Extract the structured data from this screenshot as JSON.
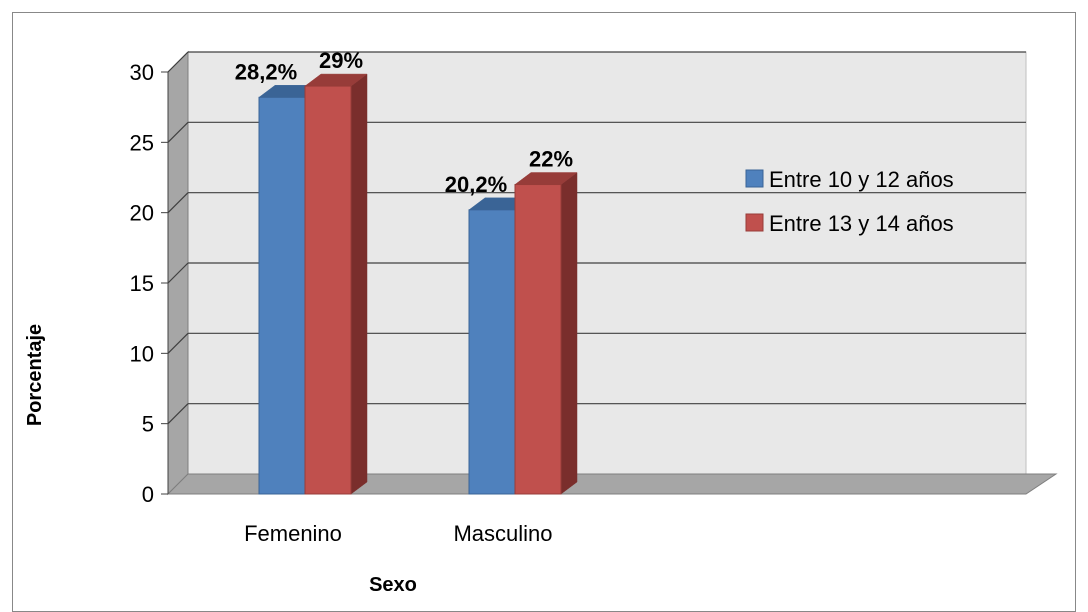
{
  "chart_data": {
    "type": "bar",
    "categories": [
      "Femenino",
      "Masculino"
    ],
    "series": [
      {
        "name": "Entre 10 y 12 años",
        "values": [
          28.2,
          20.2
        ],
        "labels": [
          "28,2%",
          "20,2%"
        ],
        "color": "#4f81bd",
        "shade": "#3a6496",
        "dark": "#2d4f78"
      },
      {
        "name": "Entre 13 y 14 años",
        "values": [
          29,
          22
        ],
        "labels": [
          "29%",
          "22%"
        ],
        "color": "#c0504d",
        "shade": "#973c39",
        "dark": "#7a2e2c"
      }
    ],
    "ylim": [
      0,
      30
    ],
    "yticks": [
      "0",
      "5",
      "10",
      "15",
      "20",
      "25",
      "30"
    ],
    "xlabel": "Sexo",
    "ylabel": "Porcentaje",
    "legend_position": "right",
    "grid": true,
    "style": "3d-clustered-column",
    "colors": {
      "wall": "#e8e8e8",
      "side_wall": "#a6a6a6",
      "floor": "#a6a6a6",
      "gridline": "#404040"
    }
  }
}
